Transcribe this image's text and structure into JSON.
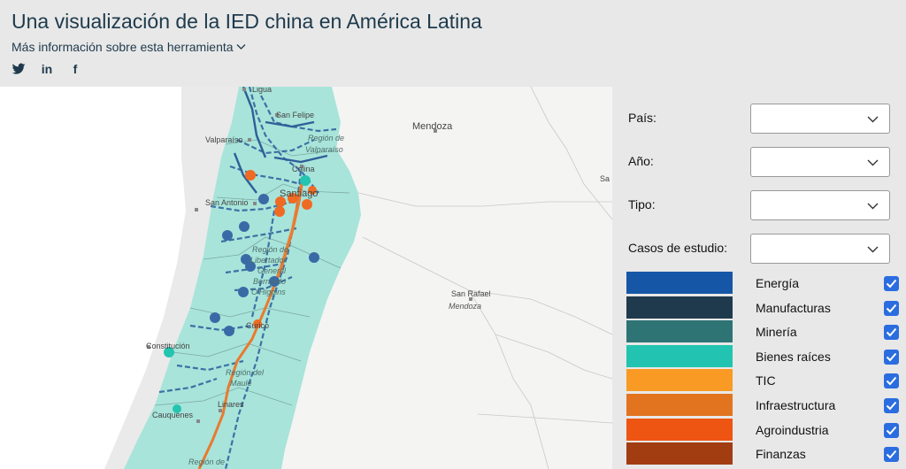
{
  "header": {
    "title": "Una visualización de la IED china en América Latina",
    "more_info": "Más información sobre esta herramienta",
    "social": [
      "twitter-icon",
      "linkedin-icon",
      "facebook-icon"
    ],
    "linkedin_text": "in",
    "facebook_text": "f"
  },
  "map": {
    "labels": {
      "ligua": "Ligua",
      "san_felipe": "San Felipe",
      "valparaiso": "Valparaíso",
      "region_valparaiso_1": "Región de",
      "region_valparaiso_2": "Valparaíso",
      "colina": "Colina",
      "santiago": "Santiago",
      "san_antonio": "San Antonio",
      "region_ohiggins_1": "Región de",
      "region_ohiggins_2": "Libertador",
      "region_ohiggins_3": "General",
      "region_ohiggins_4": "Bernardo",
      "region_ohiggins_5": "O'Higgins",
      "curico": "Curicó",
      "constitucion": "Constitución",
      "region_maule_1": "Región del",
      "region_maule_2": "Maule",
      "linares": "Linares",
      "cauquenes": "Cauquenes",
      "region_bottom": "Región de",
      "mendoza": "Mendoza",
      "san_rafael": "San Rafael",
      "mendoza_region": "Mendoza",
      "sa": "Sa"
    },
    "colors": {
      "region_fill": "#a8e4da",
      "land": "#f4f4f3",
      "ocean": "#ffffff",
      "line_blue": "#2a5d9c",
      "line_orange": "#e97a2e",
      "point_blue": "#3a6aa6",
      "point_teal": "#23c4b0",
      "point_orange": "#ef6a22"
    }
  },
  "filters": [
    {
      "label": "País:",
      "value": ""
    },
    {
      "label": "Año:",
      "value": ""
    },
    {
      "label": "Tipo:",
      "value": ""
    },
    {
      "label": "Casos de estudio:",
      "value": ""
    }
  ],
  "legend": [
    {
      "label": "Energía",
      "color": "#1557a6",
      "checked": true
    },
    {
      "label": "Manufacturas",
      "color": "#1f3a4d",
      "checked": true
    },
    {
      "label": "Minería",
      "color": "#2e7475",
      "checked": true
    },
    {
      "label": "Bienes raíces",
      "color": "#22c4b1",
      "checked": true
    },
    {
      "label": "TIC",
      "color": "#f99a24",
      "checked": true
    },
    {
      "label": "Infraestructura",
      "color": "#e2741f",
      "checked": true
    },
    {
      "label": "Agroindustria",
      "color": "#ef5512",
      "checked": true
    },
    {
      "label": "Finanzas",
      "color": "#a23d12",
      "checked": true
    }
  ]
}
